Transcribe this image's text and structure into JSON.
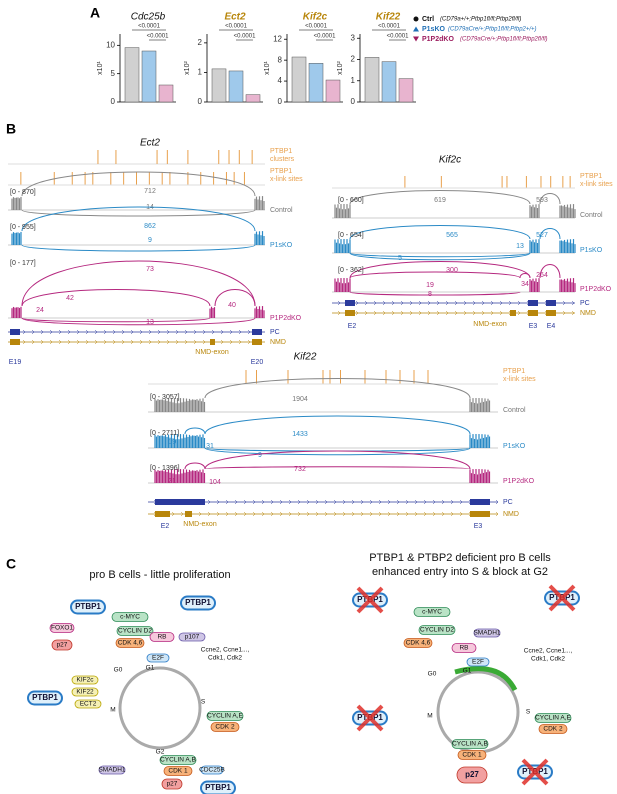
{
  "panel_labels": [
    "A",
    "B",
    "C"
  ],
  "panel_a": {
    "charts": [
      {
        "type": "bar",
        "title": "Cdc25b",
        "ylabel": "x10¹",
        "ylim": [
          0,
          12
        ],
        "yticks": [
          0,
          5,
          10
        ],
        "values": [
          9.6,
          9.0,
          3.0
        ],
        "sig": [
          "<0.0001",
          "<0.0001"
        ]
      },
      {
        "type": "bar",
        "title": "Ect2",
        "ylabel": "x10²",
        "ylim": [
          0,
          2.3
        ],
        "yticks": [
          0,
          1,
          2
        ],
        "values": [
          1.12,
          1.05,
          0.25
        ],
        "sig": [
          "<0.0001",
          "<0.0001"
        ]
      },
      {
        "type": "bar",
        "title": "Kif2c",
        "ylabel": "x10¹",
        "ylim": [
          0,
          13
        ],
        "yticks": [
          0,
          4,
          8,
          12
        ],
        "values": [
          8.6,
          7.4,
          4.2
        ],
        "sig": [
          "<0.0001",
          "<0.0001"
        ]
      },
      {
        "type": "bar",
        "title": "Kif22",
        "ylabel": "x10²",
        "ylim": [
          0,
          3.2
        ],
        "yticks": [
          0,
          1,
          2,
          3
        ],
        "values": [
          2.1,
          1.9,
          1.1
        ],
        "sig": [
          "<0.0001",
          "<0.0001"
        ]
      }
    ],
    "series": [
      {
        "name": "Ctrl",
        "genotype": "(CD79a+/+;Ptbp1fl/fl;Ptbp2fl/fl)",
        "color": "#d0d0d0",
        "marker_color": "#111"
      },
      {
        "name": "P1sKO",
        "genotype": "(CD79aCre/+;Ptbp1fl/fl;Ptbp2+/+)",
        "color": "#9fc9eb",
        "marker_color": "#1f6fb5"
      },
      {
        "name": "P1P2dKO",
        "genotype": "(CD79aCre/+;Ptbp1fl/fl;Ptbp2fl/fl)",
        "color": "#e8b4cf",
        "marker_color": "#9c1d5f"
      }
    ]
  },
  "panel_b": {
    "ect2": {
      "title": "Ect2",
      "track_labels": [
        "PTBP1",
        "clusters",
        "PTBP1",
        "x-link sites"
      ],
      "samples": [
        {
          "range": "[0 - 870]",
          "name": "Control",
          "junctions": [
            712,
            14
          ]
        },
        {
          "range": "[0 - 955]",
          "name": "P1sKO",
          "junctions": [
            862,
            9
          ]
        },
        {
          "range": "[0 - 177]",
          "name": "P1P2dKO",
          "junctions": [
            73,
            42,
            40,
            24,
            13
          ]
        }
      ],
      "tracks": [
        "PC",
        "NMD"
      ],
      "exon_labels": [
        "E19",
        "E20",
        "NMD-exon"
      ]
    },
    "kif2c": {
      "title": "Kif2c",
      "track_labels": [
        "PTBP1",
        "x-link sites"
      ],
      "samples": [
        {
          "range": "[0 - 660]",
          "name": "Control",
          "junctions": [
            619,
            593
          ]
        },
        {
          "range": "[0 - 654]",
          "name": "P1sKO",
          "junctions": [
            565,
            527,
            13,
            5
          ]
        },
        {
          "range": "[0 - 362]",
          "name": "P1P2dKO",
          "junctions": [
            300,
            264,
            19,
            34,
            8
          ]
        }
      ],
      "tracks": [
        "PC",
        "NMD"
      ],
      "exon_labels": [
        "E2",
        "NMD-exon",
        "E3",
        "E4"
      ]
    },
    "kif22": {
      "title": "Kif22",
      "track_labels": [
        "PTBP1",
        "x-link sites"
      ],
      "samples": [
        {
          "range": "[0 - 3057]",
          "name": "Control",
          "junctions": [
            1904
          ]
        },
        {
          "range": "[0 - 2711]",
          "name": "P1sKO",
          "junctions": [
            1433,
            19,
            31,
            9
          ]
        },
        {
          "range": "[0 - 1396]",
          "name": "P1P2dKO",
          "junctions": [
            732,
            21,
            104
          ]
        }
      ],
      "tracks": [
        "PC",
        "NMD"
      ],
      "exon_labels": [
        "E2",
        "NMD-exon",
        "E3"
      ]
    }
  },
  "panel_c": {
    "left": {
      "title": "pro B cells - little proliferation",
      "nodes": [
        "PTBP1",
        "FOXO1",
        "c-MYC",
        "CYCLIN D2",
        "CDK 4,6",
        "p27",
        "RB",
        "p107",
        "PTBP1",
        "E2F",
        "Ccne2, Ccne1...,",
        "Cdk1, Cdk2",
        "G0",
        "G1",
        "S",
        "G2",
        "M",
        "CYCLIN A,E",
        "CDK 2",
        "KIF2c",
        "KIF22",
        "ECT2",
        "PTBP1",
        "SMADH1",
        "CYCLIN A,B",
        "CDK 1",
        "CDC25B",
        "p27",
        "PTBP1"
      ]
    },
    "right": {
      "title": [
        "PTBP1 & PTBP2 deficient pro B cells",
        "enhanced entry into S & block at G2"
      ],
      "nodes": [
        "PTBP1",
        "c-MYC",
        "CYCLIN D2",
        "CDK 4,6",
        "SMADH1",
        "RB",
        "E2F",
        "Ccne2, Ccne1...,",
        "Cdk1, Cdk2",
        "PTBP1",
        "G0",
        "G1",
        "S",
        "G2",
        "M",
        "CYCLIN A,E",
        "CDK 2",
        "PTBP1",
        "CYCLIN A,B",
        "CDK 1",
        "p27",
        "PTBP1"
      ]
    }
  }
}
